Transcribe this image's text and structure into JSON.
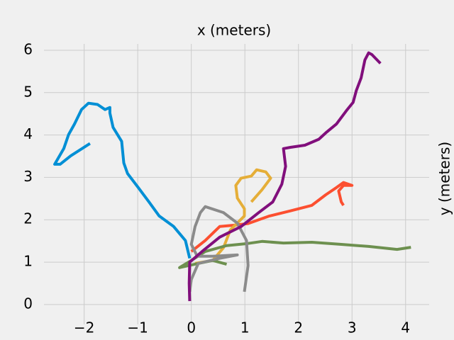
{
  "chart_data": {
    "type": "line",
    "xlabel": "x (meters)",
    "ylabel": "y (meters)",
    "xlim": [
      -2.75,
      4.44
    ],
    "ylim": [
      -0.47,
      6.15
    ],
    "xticks": [
      {
        "value": -2,
        "label": "−2"
      },
      {
        "value": -1,
        "label": "−1"
      },
      0,
      1,
      2,
      3,
      4
    ],
    "yticks": [
      0,
      1,
      2,
      3,
      4,
      5,
      6
    ],
    "grid": true,
    "series": [
      {
        "color": "#008fd5",
        "x": [
          -0.03,
          -0.11,
          -0.33,
          -0.6,
          -0.79,
          -0.99,
          -1.19,
          -1.26,
          -1.3,
          -1.46,
          -1.52,
          -1.52,
          -1.61,
          -1.75,
          -1.92,
          -2.05,
          -2.18,
          -2.29,
          -2.38,
          -2.55,
          -2.45,
          -2.25,
          -1.89
        ],
        "values": [
          1.09,
          1.51,
          1.84,
          2.09,
          2.42,
          2.76,
          3.09,
          3.34,
          3.85,
          4.18,
          4.52,
          4.65,
          4.6,
          4.72,
          4.75,
          4.6,
          4.26,
          4.01,
          3.68,
          3.31,
          3.31,
          3.51,
          3.8
        ]
      },
      {
        "color": "#fc4f30",
        "x": [
          0,
          0.26,
          0.53,
          0.79,
          1.06,
          1.46,
          1.85,
          2.25,
          2.51,
          2.71,
          2.84,
          3.0,
          2.84,
          2.75,
          2.8,
          2.84
        ],
        "values": [
          1.25,
          1.51,
          1.84,
          1.87,
          1.91,
          2.09,
          2.21,
          2.34,
          2.59,
          2.76,
          2.88,
          2.81,
          2.81,
          2.68,
          2.42,
          2.34
        ]
      },
      {
        "color": "#e5ae38",
        "x": [
          0.07,
          0.4,
          0.6,
          0.73,
          0.99,
          0.99,
          0.86,
          0.83,
          0.93,
          1.12,
          1.22,
          1.39,
          1.48,
          1.32,
          1.12
        ],
        "values": [
          0.97,
          1.04,
          1.34,
          1.76,
          2.09,
          2.26,
          2.51,
          2.81,
          2.98,
          3.03,
          3.18,
          3.13,
          2.98,
          2.71,
          2.42
        ]
      },
      {
        "color": "#6d904f",
        "x": [
          0.66,
          0.4,
          0.13,
          -0.22,
          0,
          0.26,
          0.66,
          1.06,
          1.32,
          1.72,
          2.25,
          2.78,
          3.31,
          3.84,
          4.1
        ],
        "values": [
          0.95,
          1.04,
          0.97,
          0.87,
          1.04,
          1.25,
          1.39,
          1.44,
          1.49,
          1.45,
          1.47,
          1.42,
          1.37,
          1.3,
          1.35
        ]
      },
      {
        "color": "#8b8b8b",
        "x": [
          0.99,
          1.06,
          1.03,
          0.86,
          0.6,
          0.26,
          0.17,
          0.07,
          0,
          0.11,
          0.4,
          0.86,
          0.53,
          0.13,
          0,
          -0.03
        ],
        "values": [
          0.3,
          0.92,
          1.51,
          1.92,
          2.17,
          2.31,
          2.17,
          1.84,
          1.42,
          1.14,
          1.14,
          1.17,
          1.09,
          0.97,
          0.59,
          0.3
        ]
      },
      {
        "color": "#810f7c",
        "x": [
          -0.03,
          -0.04,
          -0.03,
          0.2,
          0.53,
          0.93,
          1.26,
          1.52,
          1.69,
          1.76,
          1.72,
          1.85,
          2.12,
          2.38,
          2.51,
          2.71,
          2.91,
          3.02,
          3.08,
          3.17,
          3.24,
          3.31,
          3.37,
          3.53
        ],
        "values": [
          0.08,
          0.5,
          1.0,
          1.25,
          1.59,
          1.84,
          2.17,
          2.42,
          2.84,
          3.26,
          3.68,
          3.71,
          3.76,
          3.9,
          4.05,
          4.26,
          4.6,
          4.77,
          5.05,
          5.35,
          5.77,
          5.94,
          5.9,
          5.69
        ]
      }
    ]
  }
}
